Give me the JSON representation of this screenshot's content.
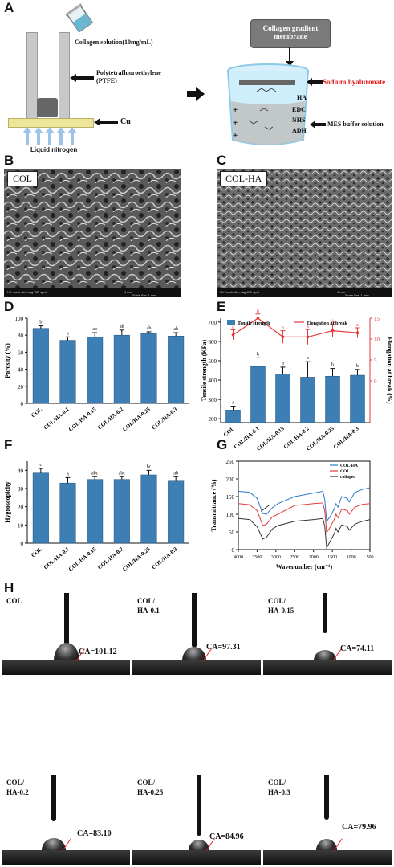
{
  "panels": {
    "A": "A",
    "B": "B",
    "C": "C",
    "D": "D",
    "E": "E",
    "F": "F",
    "G": "G",
    "H": "H"
  },
  "schematic": {
    "collagen_solution": "Collagen solution(10mg/mL)",
    "ptfe_1": "Polytetrafluoroethylene",
    "ptfe_2": "(PTFE)",
    "cu": "Cu",
    "liquid_nitrogen": "Liquid nitrogen",
    "membrane_1": "Collagen gradient",
    "membrane_2": "membrane",
    "sodium_hyaluronate": "Sodium hyaluronate",
    "ha": "HA",
    "edc": "EDC",
    "nhs": "NHS",
    "adh": "ADH",
    "mes": "MES buffer solution"
  },
  "sem": {
    "left_label": "COL",
    "right_label": "COL-HA",
    "footer_left": "HV  mode  det  mag  WD  spot",
    "footer_mid": "1 mm",
    "footer_right": "Scale Bar: 1 mm"
  },
  "colors": {
    "bar": "#3d7fb5",
    "red": "#e23a3a",
    "blue": "#2a78c8",
    "dark": "#333333"
  },
  "chart_data": [
    {
      "type": "bar",
      "panel": "D",
      "categories": [
        "COL",
        "COL/HA-0.1",
        "COL/HA-0.15",
        "COL/HA-0.2",
        "COL/HA-0.25",
        "COL/HA-0.3"
      ],
      "values": [
        88,
        74,
        78,
        80,
        82,
        79
      ],
      "errors": [
        3,
        4,
        5,
        6,
        2,
        4
      ],
      "letters": [
        "b",
        "a",
        "ab",
        "ab",
        "ab",
        "ab"
      ],
      "ylabel": "Porosity (%)",
      "ylim": [
        0,
        100
      ],
      "yticks": [
        0,
        20,
        40,
        60,
        80,
        100
      ]
    },
    {
      "type": "bar",
      "panel": "E",
      "categories": [
        "COL",
        "COL/HA-0.1",
        "COL/HA-0.15",
        "COL/HA-0.2",
        "COL/HA-0.25",
        "COL/HA-0.3"
      ],
      "series": [
        {
          "name": "Tensile strength",
          "values": [
            245,
            470,
            432,
            415,
            420,
            425
          ],
          "errors": [
            20,
            45,
            35,
            80,
            40,
            30
          ],
          "letters": [
            "a",
            "b",
            "b",
            "b",
            "b",
            "b"
          ]
        },
        {
          "name": "Elongation at break",
          "values": [
            11,
            15,
            10.5,
            10.5,
            12,
            11.5
          ],
          "errors": [
            1.2,
            1,
            1.5,
            1.8,
            1.5,
            1.2
          ],
          "letters": [
            "a",
            "b",
            "a",
            "a",
            "ab",
            "a"
          ]
        }
      ],
      "ylabel": "Tensile strength (KPa)",
      "y2label": "Elongation at break (%)",
      "ylim": [
        180,
        720
      ],
      "yticks": [
        200,
        300,
        400,
        500,
        600,
        700
      ],
      "y2lim": [
        -10,
        15
      ],
      "y2ticks": [
        0,
        5,
        10,
        15
      ]
    },
    {
      "type": "bar",
      "panel": "F",
      "categories": [
        "COL",
        "COL/HA-0.1",
        "COL/HA-0.15",
        "COL/HA-0.2",
        "COL/HA-0.25",
        "COL/HA-0.3"
      ],
      "values": [
        38.5,
        33,
        35,
        35,
        37.5,
        34.5
      ],
      "errors": [
        2.5,
        3,
        1.5,
        1.5,
        2.5,
        2
      ],
      "letters": [
        "c",
        "a",
        "abc",
        "abc",
        "bc",
        "ab"
      ],
      "ylabel": "Hygroscopicity",
      "ylim": [
        0,
        45
      ],
      "yticks": [
        0,
        10,
        20,
        30,
        40
      ]
    },
    {
      "type": "line",
      "panel": "G",
      "xlabel": "Wavenumber (cm⁻¹)",
      "ylabel": "Transmittance (%)",
      "xlim": [
        4000,
        500
      ],
      "xticks": [
        4000,
        3500,
        3000,
        2500,
        2000,
        1500,
        1000,
        500
      ],
      "ylim": [
        0,
        250
      ],
      "yticks": [
        0,
        50,
        100,
        150,
        200,
        250
      ],
      "series": [
        {
          "name": "COL-HA",
          "x": [
            4000,
            3700,
            3500,
            3350,
            3250,
            3100,
            2950,
            2500,
            2000,
            1750,
            1700,
            1650,
            1550,
            1450,
            1400,
            1350,
            1250,
            1100,
            1050,
            900,
            700,
            500
          ],
          "y": [
            165,
            162,
            145,
            102,
            100,
            118,
            130,
            150,
            160,
            165,
            140,
            80,
            95,
            115,
            130,
            120,
            150,
            145,
            135,
            162,
            170,
            175
          ]
        },
        {
          "name": "COL",
          "x": [
            4000,
            3700,
            3500,
            3350,
            3250,
            3100,
            2950,
            2500,
            2000,
            1750,
            1700,
            1650,
            1550,
            1450,
            1400,
            1350,
            1250,
            1100,
            1050,
            900,
            700,
            500
          ],
          "y": [
            130,
            127,
            110,
            68,
            72,
            92,
            100,
            125,
            130,
            132,
            108,
            48,
            65,
            85,
            100,
            90,
            115,
            110,
            100,
            120,
            128,
            130
          ]
        },
        {
          "name": "collagen",
          "x": [
            4000,
            3700,
            3500,
            3350,
            3250,
            3100,
            2950,
            2500,
            2000,
            1750,
            1700,
            1650,
            1550,
            1450,
            1400,
            1350,
            1250,
            1100,
            1050,
            900,
            700,
            500
          ],
          "y": [
            88,
            85,
            65,
            30,
            35,
            58,
            68,
            80,
            85,
            88,
            65,
            5,
            25,
            45,
            60,
            50,
            70,
            65,
            55,
            72,
            80,
            85
          ]
        }
      ]
    }
  ],
  "ca": [
    {
      "sample": "COL",
      "value": "CA=101.12"
    },
    {
      "sample": "COL/\nHA-0.1",
      "value": "CA=97.31"
    },
    {
      "sample": "COL/\nHA-0.15",
      "value": "CA=74.11"
    },
    {
      "sample": "COL/\nHA-0.2",
      "value": "CA=83.10"
    },
    {
      "sample": "COL/\nHA-0.25",
      "value": "CA=84.96"
    },
    {
      "sample": "COL/\nHA-0.3",
      "value": "CA=79.96"
    }
  ]
}
